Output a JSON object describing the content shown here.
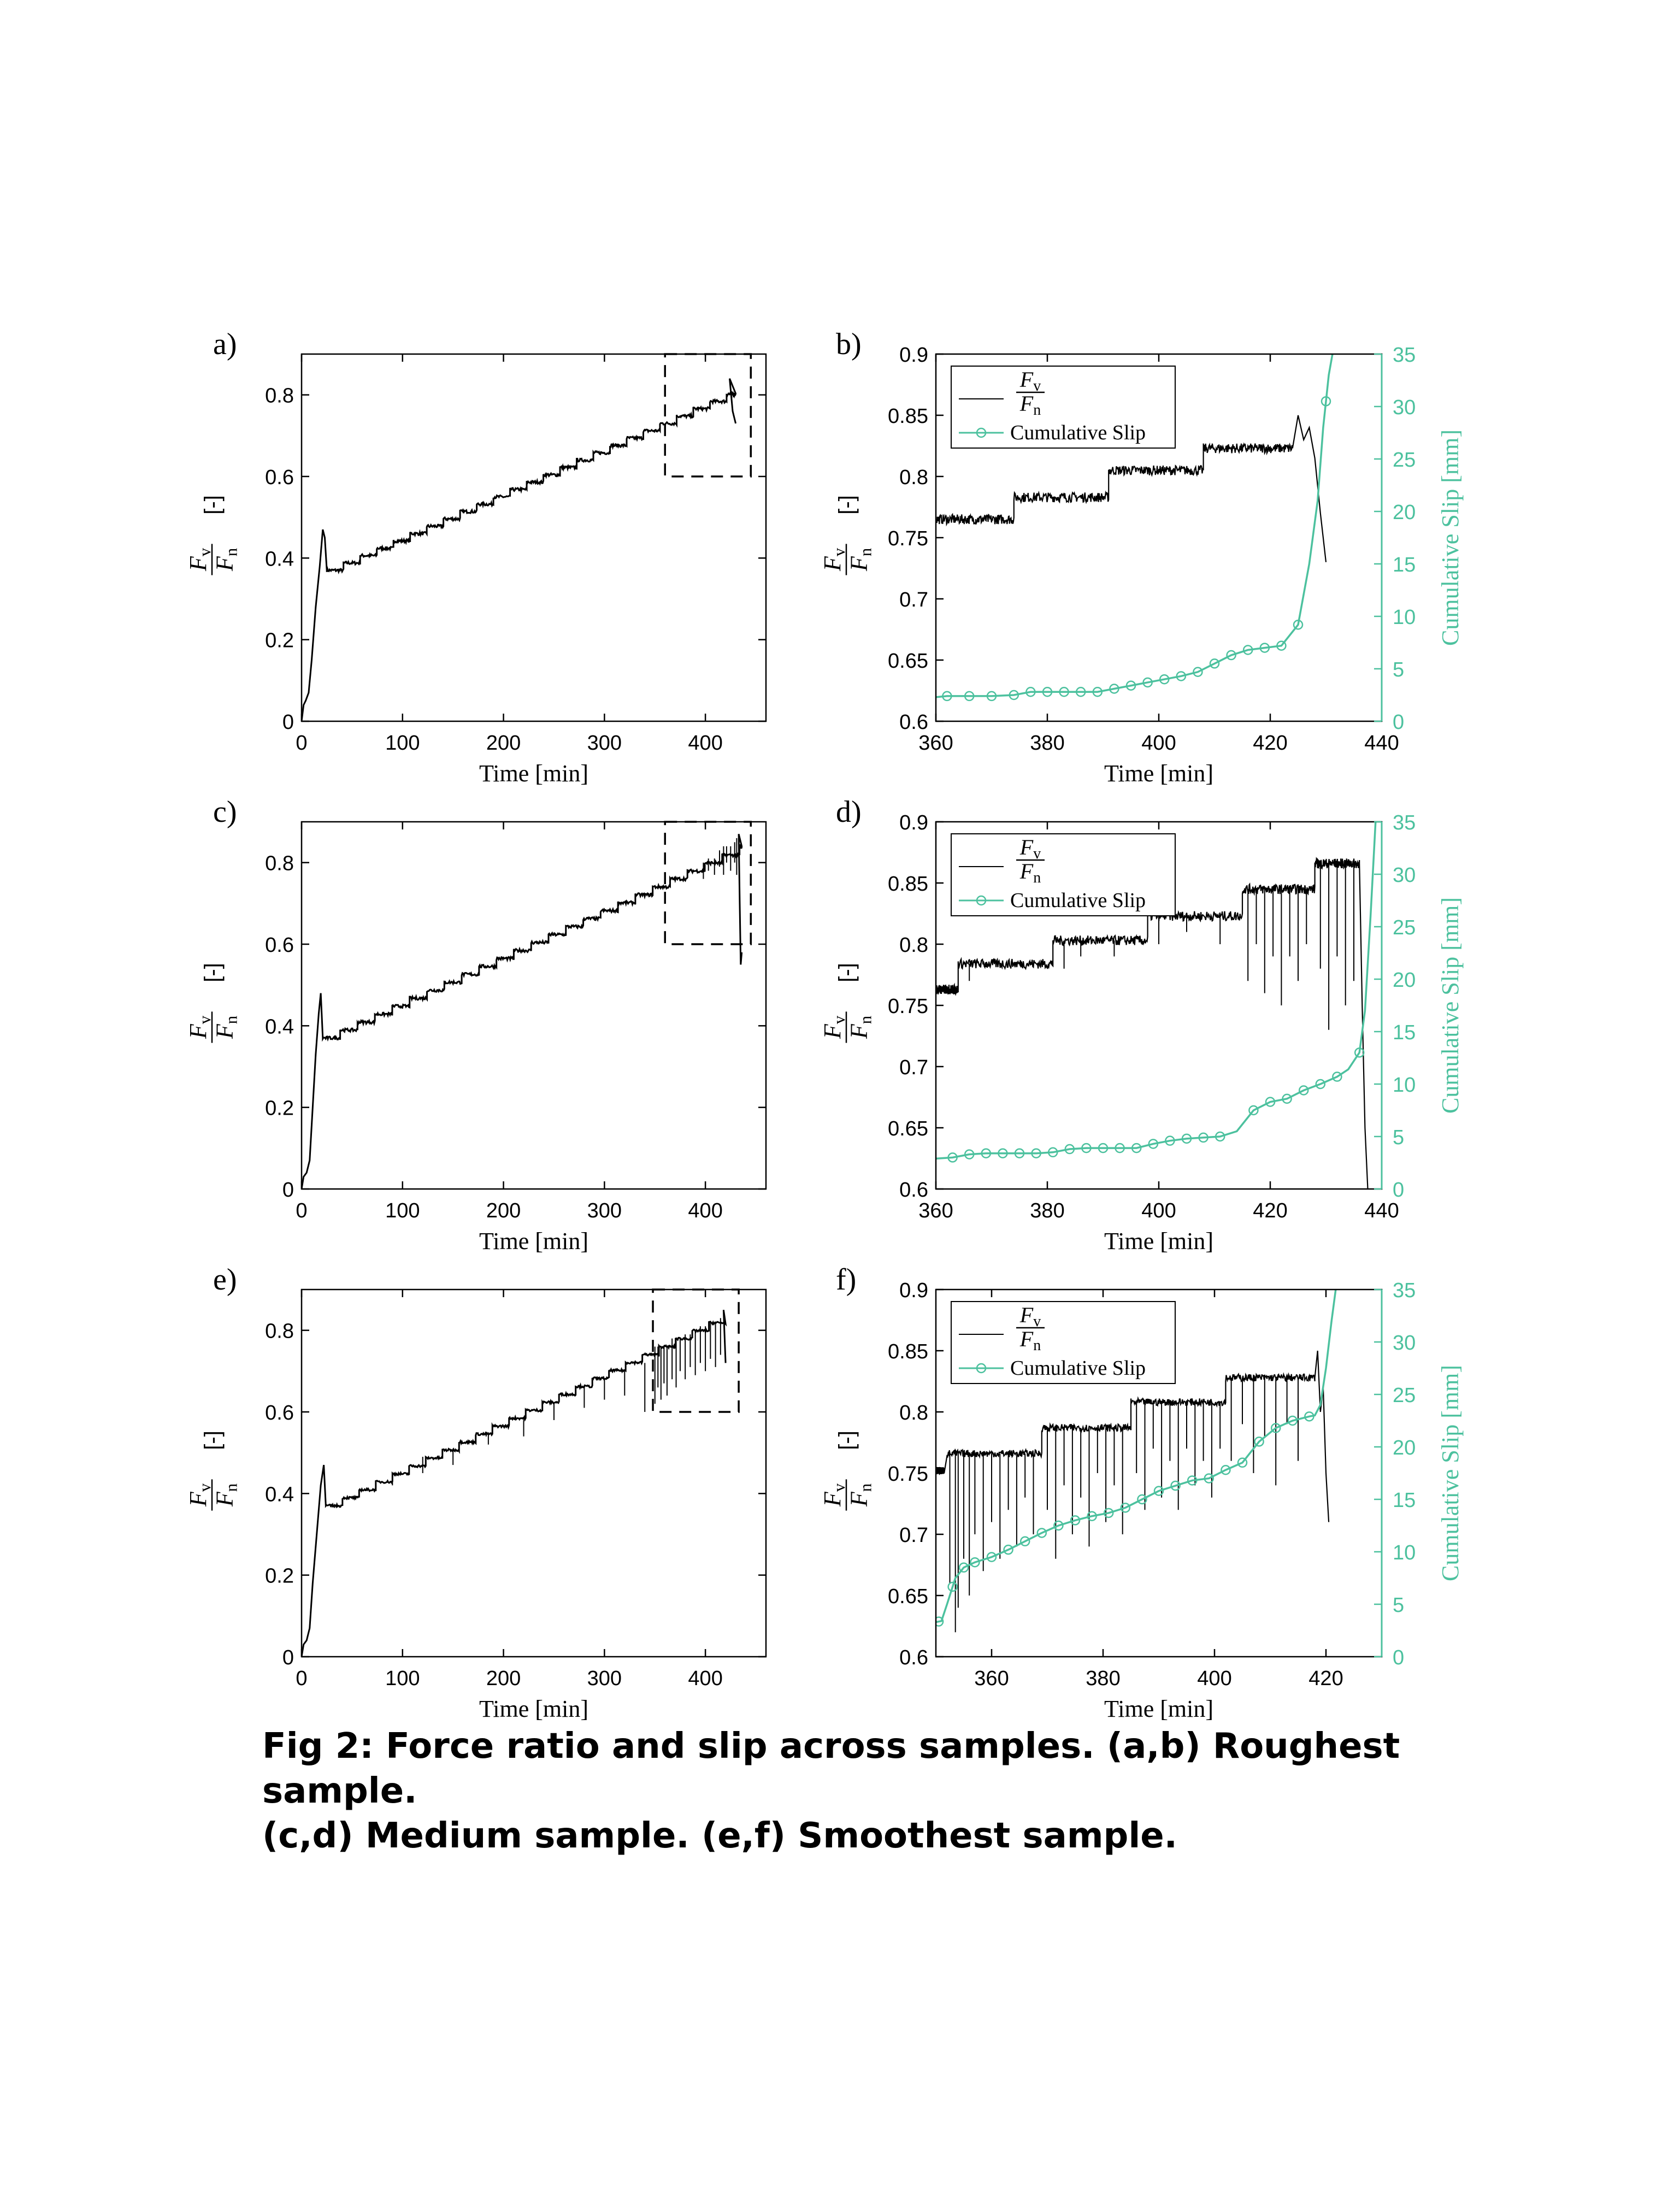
{
  "caption": {
    "line1": "Fig 2: Force ratio and slip across samples. (a,b) Roughest sample.",
    "line2": "(c,d) Medium sample. (e,f) Smoothest sample."
  },
  "colors": {
    "force": "#000000",
    "slip": "#4cc19e",
    "box": "#000000"
  },
  "chart_data": [
    {
      "id": "a",
      "panel_label": "a)",
      "type": "line",
      "sample": "Roughest sample",
      "xlabel": "Time [min]",
      "ylabel": "Fv/Fn [-]",
      "xlim": [
        0,
        460
      ],
      "ylim": [
        0,
        0.9
      ],
      "xticks": [
        0,
        100,
        200,
        300,
        400
      ],
      "yticks": [
        0,
        0.2,
        0.4,
        0.6,
        0.8
      ],
      "ramp_x": [
        0,
        2,
        4,
        7,
        10,
        14,
        18,
        21,
        23,
        25
      ],
      "ramp_y": [
        0.0,
        0.04,
        0.05,
        0.07,
        0.15,
        0.28,
        0.38,
        0.47,
        0.45,
        0.37
      ],
      "step_start": 25,
      "step_end": 430,
      "step_interval": 16.5,
      "step_y0": 0.37,
      "step_dy": 0.018,
      "noise": 0.004,
      "drops": [],
      "end_x": [
        424,
        427,
        430
      ],
      "end_y": [
        0.84,
        0.76,
        0.73
      ],
      "zoom_box": {
        "x": [
          360,
          445
        ],
        "y": [
          0.6,
          0.9
        ]
      }
    },
    {
      "id": "b",
      "panel_label": "b)",
      "type": "line",
      "dual_axis": true,
      "xlabel": "Time [min]",
      "ylabel": "Fv/Fn [-]",
      "ylabel_right": "Cumulative Slip [mm]",
      "xlim": [
        360,
        440
      ],
      "ylim": [
        0.6,
        0.9
      ],
      "ylim_right": [
        0,
        35
      ],
      "xticks": [
        360,
        380,
        400,
        420,
        440
      ],
      "yticks": [
        0.6,
        0.65,
        0.7,
        0.75,
        0.8,
        0.85,
        0.9
      ],
      "yticks_right": [
        0,
        5,
        10,
        15,
        20,
        25,
        30,
        35
      ],
      "legend": {
        "force_label": "Fv/Fn",
        "slip_label": "Cumulative Slip"
      },
      "force_steps": [
        {
          "x0": 360,
          "x1": 374,
          "y": 0.765
        },
        {
          "x0": 374,
          "x1": 391,
          "y": 0.783
        },
        {
          "x0": 391,
          "x1": 408,
          "y": 0.805
        },
        {
          "x0": 408,
          "x1": 424,
          "y": 0.823
        }
      ],
      "force_noise": 0.004,
      "drops": [],
      "force_end_x": [
        424,
        425,
        426,
        427,
        428,
        429,
        430
      ],
      "force_end_y": [
        0.823,
        0.85,
        0.83,
        0.84,
        0.815,
        0.77,
        0.73
      ],
      "slip_x": [
        360,
        362,
        366,
        370,
        374,
        377,
        380,
        383,
        386,
        389,
        392,
        395,
        398,
        401,
        404,
        407,
        410,
        413,
        416,
        419,
        422,
        425,
        427,
        428.5,
        429.5,
        430.5,
        431.5
      ],
      "slip_y": [
        2.3,
        2.4,
        2.4,
        2.4,
        2.5,
        2.8,
        2.8,
        2.8,
        2.8,
        2.8,
        3.1,
        3.4,
        3.7,
        4.0,
        4.3,
        4.7,
        5.5,
        6.3,
        6.8,
        7.0,
        7.2,
        9.2,
        15,
        21,
        28,
        33,
        36
      ],
      "slip_markers_x": [
        362,
        366,
        370,
        374,
        377,
        380,
        383,
        386,
        389,
        392,
        395,
        398,
        401,
        404,
        407,
        410,
        413,
        416,
        419,
        422,
        425,
        430
      ]
    },
    {
      "id": "c",
      "panel_label": "c)",
      "type": "line",
      "sample": "Medium sample",
      "xlabel": "Time [min]",
      "ylabel": "Fv/Fn [-]",
      "xlim": [
        0,
        460
      ],
      "ylim": [
        0,
        0.9
      ],
      "xticks": [
        0,
        100,
        200,
        300,
        400
      ],
      "yticks": [
        0,
        0.2,
        0.4,
        0.6,
        0.8
      ],
      "ramp_x": [
        0,
        2,
        5,
        8,
        11,
        14,
        17,
        19,
        21
      ],
      "ramp_y": [
        0.0,
        0.03,
        0.04,
        0.07,
        0.2,
        0.33,
        0.43,
        0.48,
        0.37
      ],
      "step_start": 21,
      "step_end": 436,
      "step_interval": 17.2,
      "step_y0": 0.37,
      "step_dy": 0.0195,
      "noise": 0.004,
      "drops": [
        [
          398,
          0.8,
          0.76
        ],
        [
          403,
          0.81,
          0.78
        ],
        [
          409,
          0.81,
          0.77
        ],
        [
          414,
          0.83,
          0.79
        ],
        [
          418,
          0.84,
          0.77
        ],
        [
          421,
          0.84,
          0.8
        ],
        [
          425,
          0.84,
          0.78
        ],
        [
          429,
          0.85,
          0.8
        ],
        [
          431,
          0.86,
          0.77
        ]
      ],
      "end_x": [
        433,
        434,
        435,
        436
      ],
      "end_y": [
        0.87,
        0.7,
        0.55,
        0.58
      ],
      "zoom_box": {
        "x": [
          360,
          445
        ],
        "y": [
          0.6,
          0.9
        ]
      }
    },
    {
      "id": "d",
      "panel_label": "d)",
      "type": "line",
      "dual_axis": true,
      "xlabel": "Time [min]",
      "ylabel": "Fv/Fn [-]",
      "ylabel_right": "Cumulative Slip [mm]",
      "xlim": [
        360,
        440
      ],
      "ylim": [
        0.6,
        0.9
      ],
      "ylim_right": [
        0,
        35
      ],
      "xticks": [
        360,
        380,
        400,
        420,
        440
      ],
      "yticks": [
        0.6,
        0.65,
        0.7,
        0.75,
        0.8,
        0.85,
        0.9
      ],
      "yticks_right": [
        0,
        5,
        10,
        15,
        20,
        25,
        30,
        35
      ],
      "legend": {
        "force_label": "Fv/Fn",
        "slip_label": "Cumulative Slip"
      },
      "force_steps": [
        {
          "x0": 360,
          "x1": 364,
          "y": 0.763
        },
        {
          "x0": 364,
          "x1": 381,
          "y": 0.784
        },
        {
          "x0": 381,
          "x1": 398,
          "y": 0.803
        },
        {
          "x0": 398,
          "x1": 415,
          "y": 0.823
        },
        {
          "x0": 415,
          "x1": 428,
          "y": 0.845
        },
        {
          "x0": 428,
          "x1": 436,
          "y": 0.866
        }
      ],
      "force_noise": 0.004,
      "drops": [
        [
          366,
          0.784,
          0.77
        ],
        [
          383,
          0.803,
          0.78
        ],
        [
          386,
          0.803,
          0.79
        ],
        [
          392,
          0.803,
          0.79
        ],
        [
          400,
          0.823,
          0.8
        ],
        [
          405,
          0.823,
          0.81
        ],
        [
          411,
          0.823,
          0.8
        ],
        [
          416,
          0.845,
          0.77
        ],
        [
          417.5,
          0.845,
          0.8
        ],
        [
          419,
          0.845,
          0.76
        ],
        [
          420.5,
          0.845,
          0.79
        ],
        [
          422,
          0.845,
          0.75
        ],
        [
          423.5,
          0.845,
          0.79
        ],
        [
          425,
          0.845,
          0.77
        ],
        [
          426.5,
          0.845,
          0.8
        ],
        [
          429,
          0.866,
          0.78
        ],
        [
          430.5,
          0.866,
          0.73
        ],
        [
          432,
          0.866,
          0.79
        ],
        [
          433.5,
          0.866,
          0.75
        ],
        [
          435,
          0.866,
          0.77
        ]
      ],
      "force_end_x": [
        436,
        436.5,
        437,
        437.5
      ],
      "force_end_y": [
        0.866,
        0.75,
        0.65,
        0.6
      ],
      "slip_x": [
        360,
        363,
        366,
        369,
        372,
        375,
        378,
        381,
        384,
        387,
        390,
        393,
        396,
        399,
        402,
        405,
        408,
        411,
        414,
        417,
        420,
        423,
        426,
        429,
        432,
        434,
        436,
        437,
        438,
        439
      ],
      "slip_y": [
        2.9,
        3.0,
        3.3,
        3.4,
        3.4,
        3.4,
        3.4,
        3.5,
        3.8,
        3.9,
        3.9,
        3.9,
        3.9,
        4.3,
        4.6,
        4.8,
        4.9,
        5.0,
        5.5,
        7.5,
        8.3,
        8.6,
        9.4,
        10.0,
        10.7,
        11.4,
        13.0,
        17,
        26,
        36
      ],
      "slip_markers_x": [
        363,
        366,
        369,
        372,
        375,
        378,
        381,
        384,
        387,
        390,
        393,
        396,
        399,
        402,
        405,
        408,
        411,
        417,
        420,
        423,
        426,
        429,
        432,
        436
      ]
    },
    {
      "id": "e",
      "panel_label": "e)",
      "type": "line",
      "sample": "Smoothest sample",
      "xlabel": "Time [min]",
      "ylabel": "Fv/Fn [-]",
      "xlim": [
        0,
        460
      ],
      "ylim": [
        0,
        0.9
      ],
      "xticks": [
        0,
        100,
        200,
        300,
        400
      ],
      "yticks": [
        0,
        0.2,
        0.4,
        0.6,
        0.8
      ],
      "ramp_x": [
        0,
        2,
        5,
        8,
        11,
        15,
        19,
        22,
        24
      ],
      "ramp_y": [
        0.0,
        0.03,
        0.04,
        0.07,
        0.18,
        0.3,
        0.42,
        0.47,
        0.37
      ],
      "step_start": 24,
      "step_end": 420,
      "step_interval": 16.5,
      "step_y0": 0.37,
      "step_dy": 0.0195,
      "noise": 0.003,
      "drops": [
        [
          90,
          0.45,
          0.42
        ],
        [
          120,
          0.49,
          0.45
        ],
        [
          150,
          0.51,
          0.47
        ],
        [
          185,
          0.55,
          0.52
        ],
        [
          220,
          0.58,
          0.54
        ],
        [
          250,
          0.62,
          0.58
        ],
        [
          280,
          0.66,
          0.61
        ],
        [
          300,
          0.68,
          0.63
        ],
        [
          320,
          0.7,
          0.64
        ],
        [
          340,
          0.72,
          0.6
        ],
        [
          350,
          0.76,
          0.62
        ],
        [
          353,
          0.76,
          0.66
        ],
        [
          356,
          0.76,
          0.63
        ],
        [
          359,
          0.76,
          0.67
        ],
        [
          362,
          0.76,
          0.64
        ],
        [
          367,
          0.78,
          0.68
        ],
        [
          371,
          0.78,
          0.66
        ],
        [
          375,
          0.78,
          0.7
        ],
        [
          380,
          0.79,
          0.68
        ],
        [
          385,
          0.79,
          0.71
        ],
        [
          390,
          0.8,
          0.69
        ],
        [
          395,
          0.81,
          0.72
        ],
        [
          400,
          0.81,
          0.7
        ],
        [
          405,
          0.82,
          0.73
        ],
        [
          410,
          0.82,
          0.71
        ],
        [
          415,
          0.83,
          0.74
        ]
      ],
      "end_x": [
        418,
        420
      ],
      "end_y": [
        0.85,
        0.72
      ],
      "zoom_box": {
        "x": [
          348,
          433
        ],
        "y": [
          0.6,
          0.9
        ]
      }
    },
    {
      "id": "f",
      "panel_label": "f)",
      "type": "line",
      "dual_axis": true,
      "xlabel": "Time [min]",
      "ylabel": "Fv/Fn [-]",
      "ylabel_right": "Cumulative Slip [mm]",
      "xlim": [
        350,
        430
      ],
      "ylim": [
        0.6,
        0.9
      ],
      "ylim_right": [
        0,
        35
      ],
      "xticks": [
        360,
        380,
        400,
        420
      ],
      "yticks": [
        0.6,
        0.65,
        0.7,
        0.75,
        0.8,
        0.85,
        0.9
      ],
      "yticks_right": [
        0,
        5,
        10,
        15,
        20,
        25,
        30,
        35
      ],
      "legend": {
        "force_label": "Fv/Fn",
        "slip_label": "Cumulative Slip"
      },
      "force_steps": [
        {
          "x0": 350,
          "x1": 351.5,
          "y": 0.752
        },
        {
          "x0": 352,
          "x1": 369,
          "y": 0.766
        },
        {
          "x0": 369,
          "x1": 385,
          "y": 0.787
        },
        {
          "x0": 385,
          "x1": 402,
          "y": 0.808
        },
        {
          "x0": 402,
          "x1": 418,
          "y": 0.828
        }
      ],
      "force_noise": 0.003,
      "drops": [
        [
          352.5,
          0.766,
          0.66
        ],
        [
          353.5,
          0.766,
          0.62
        ],
        [
          354,
          0.766,
          0.64
        ],
        [
          355,
          0.766,
          0.68
        ],
        [
          356,
          0.766,
          0.65
        ],
        [
          357,
          0.766,
          0.7
        ],
        [
          358.5,
          0.766,
          0.67
        ],
        [
          360,
          0.766,
          0.71
        ],
        [
          361.5,
          0.766,
          0.68
        ],
        [
          363,
          0.766,
          0.72
        ],
        [
          364.5,
          0.766,
          0.69
        ],
        [
          366,
          0.766,
          0.73
        ],
        [
          367.5,
          0.766,
          0.7
        ],
        [
          370,
          0.787,
          0.72
        ],
        [
          371.5,
          0.787,
          0.68
        ],
        [
          373,
          0.787,
          0.74
        ],
        [
          374.5,
          0.787,
          0.7
        ],
        [
          376,
          0.787,
          0.73
        ],
        [
          377.5,
          0.787,
          0.69
        ],
        [
          379,
          0.787,
          0.75
        ],
        [
          380.5,
          0.787,
          0.71
        ],
        [
          382,
          0.787,
          0.74
        ],
        [
          383.5,
          0.787,
          0.7
        ],
        [
          386,
          0.808,
          0.75
        ],
        [
          387.5,
          0.808,
          0.72
        ],
        [
          389,
          0.808,
          0.77
        ],
        [
          390.5,
          0.808,
          0.73
        ],
        [
          392,
          0.808,
          0.76
        ],
        [
          393.5,
          0.808,
          0.72
        ],
        [
          395,
          0.808,
          0.77
        ],
        [
          396.5,
          0.808,
          0.74
        ],
        [
          398,
          0.808,
          0.76
        ],
        [
          399.5,
          0.808,
          0.73
        ],
        [
          401,
          0.808,
          0.77
        ],
        [
          403,
          0.828,
          0.76
        ],
        [
          405,
          0.828,
          0.79
        ],
        [
          407,
          0.828,
          0.75
        ],
        [
          409,
          0.828,
          0.78
        ],
        [
          411,
          0.828,
          0.74
        ],
        [
          413,
          0.828,
          0.79
        ],
        [
          415,
          0.828,
          0.76
        ]
      ],
      "force_end_x": [
        418,
        418.5,
        419,
        419.5,
        420,
        420.5
      ],
      "force_end_y": [
        0.828,
        0.85,
        0.8,
        0.82,
        0.75,
        0.71
      ],
      "slip_x": [
        350,
        351,
        352,
        353.5,
        355,
        357,
        360,
        363,
        366,
        369,
        372,
        375,
        378,
        381,
        384,
        387,
        390,
        393,
        396,
        399,
        402,
        405,
        408,
        411,
        414,
        417,
        418,
        419,
        420,
        421,
        422
      ],
      "slip_y": [
        3.3,
        3.4,
        5.0,
        7.5,
        8.5,
        9.0,
        9.5,
        10.2,
        11.0,
        11.8,
        12.5,
        13.0,
        13.4,
        13.7,
        14.2,
        15.0,
        15.8,
        16.3,
        16.8,
        17.0,
        17.8,
        18.5,
        20.5,
        21.8,
        22.5,
        22.9,
        23.0,
        24.0,
        27.5,
        32.0,
        36.0
      ],
      "slip_markers_x": [
        350.5,
        353,
        355,
        357,
        360,
        363,
        366,
        369,
        372,
        375,
        378,
        381,
        384,
        387,
        390,
        393,
        396,
        399,
        402,
        405,
        408,
        411,
        414,
        417
      ]
    }
  ]
}
